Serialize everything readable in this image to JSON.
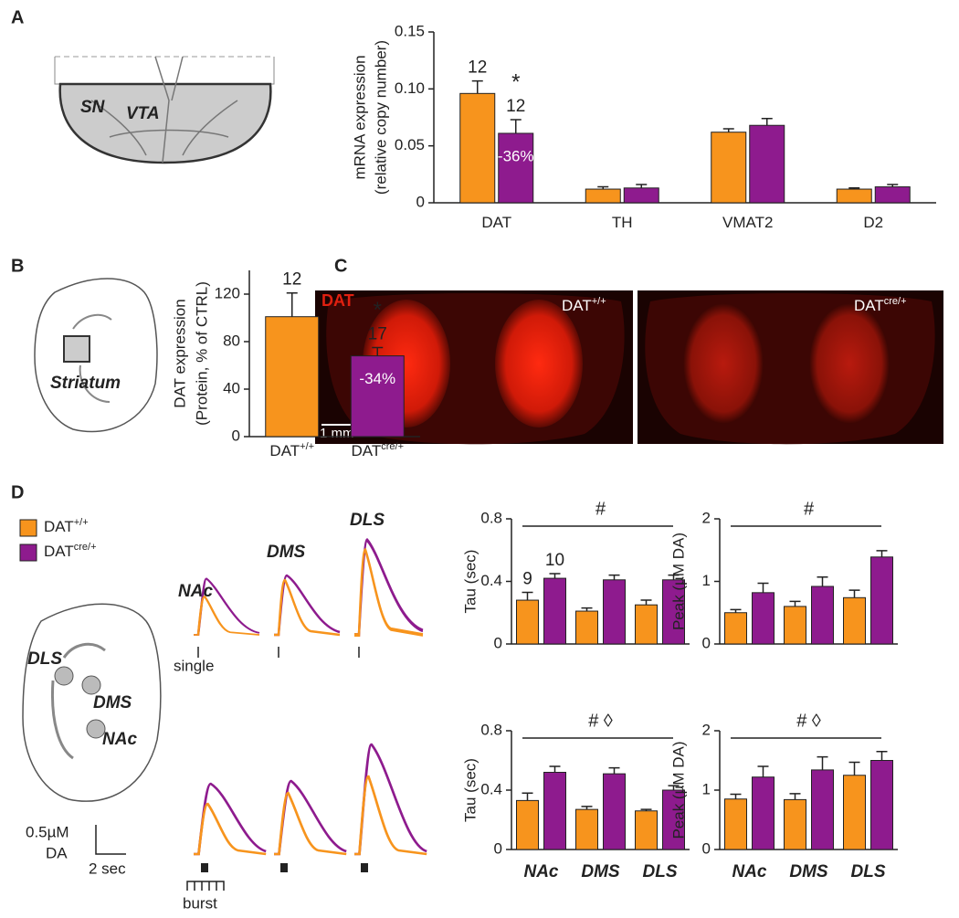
{
  "panel_labels": [
    "A",
    "B",
    "C",
    "D"
  ],
  "diagram_labels": {
    "A": [
      "SN",
      "VTA"
    ],
    "B": [
      "Striatum"
    ],
    "D": [
      "DLS",
      "DMS",
      "NAc"
    ]
  },
  "panel_c": {
    "stain": "DAT",
    "images": [
      {
        "base": "DAT",
        "sup": "+/+"
      },
      {
        "base": "DAT",
        "sup": "cre/+"
      }
    ],
    "scale": "1 mm"
  },
  "traces": {
    "titles": [
      "NAc",
      "DMS",
      "DLS"
    ],
    "single": "single",
    "burst": "burst",
    "scale_y": [
      "0.5µM",
      "DA"
    ],
    "scale_x": "2 sec"
  },
  "chart_data": [
    {
      "type": "bar",
      "ylabel": [
        "mRNA expression",
        "(relative copy number)"
      ],
      "categories": [
        "DAT",
        "TH",
        "VMAT2",
        "D2"
      ],
      "ylim": [
        0,
        0.15
      ],
      "yticks": [
        0,
        0.05,
        {
          "value": 0.1,
          "label": "0.10"
        },
        0.15
      ],
      "series": [
        {
          "color": "#f7941d",
          "values": [
            0.096,
            0.012,
            0.062,
            0.012
          ],
          "errors": [
            0.011,
            0.002,
            0.003,
            0.001
          ],
          "n": [
            12,
            null,
            null,
            null
          ]
        },
        {
          "color": "#8e1b8e",
          "values": [
            0.061,
            0.013,
            0.068,
            0.014
          ],
          "errors": [
            0.012,
            0.003,
            0.006,
            0.002
          ],
          "n": [
            12,
            null,
            null,
            null
          ],
          "marks": [
            "*",
            null,
            null,
            null
          ],
          "inner_labels": [
            "-36%",
            null,
            null,
            null
          ]
        }
      ]
    },
    {
      "type": "bar",
      "ylabel": [
        "DAT expression",
        "(Protein, % of CTRL)"
      ],
      "categories": [
        "DAT",
        "DAT"
      ],
      "category_sups": [
        "+/+",
        "cre/+"
      ],
      "ylim": [
        0,
        140
      ],
      "yticks": [
        0,
        40,
        80,
        120
      ],
      "series": [
        {
          "colors": [
            "#f7941d",
            "#8e1b8e"
          ],
          "values": [
            101,
            68
          ],
          "errors": [
            20,
            7
          ],
          "n": [
            12,
            17
          ],
          "marks": [
            null,
            "*"
          ],
          "inner_labels": [
            null,
            "-34%"
          ]
        }
      ]
    },
    {
      "type": "bar",
      "ylabel": [
        "Tau (sec)"
      ],
      "categories": [
        null,
        null,
        null
      ],
      "ylim": [
        0,
        0.8
      ],
      "yticks": [
        0,
        0.4,
        0.8
      ],
      "annotation": "#",
      "series": [
        {
          "name": "DAT",
          "name_sup": "+/+",
          "color": "#f7941d",
          "values": [
            0.28,
            0.21,
            0.25
          ],
          "errors": [
            0.05,
            0.02,
            0.03
          ],
          "n": [
            9,
            null,
            null
          ]
        },
        {
          "name": "DAT",
          "name_sup": "cre/+",
          "color": "#8e1b8e",
          "values": [
            0.42,
            0.41,
            0.41
          ],
          "errors": [
            0.03,
            0.03,
            0.03
          ],
          "n": [
            10,
            null,
            null
          ]
        }
      ]
    },
    {
      "type": "bar",
      "ylabel": [
        "Peak (µM DA)"
      ],
      "categories": [
        null,
        null,
        null
      ],
      "ylim": [
        0,
        2
      ],
      "yticks": [
        0,
        1,
        2
      ],
      "annotation": "#",
      "series": [
        {
          "color": "#f7941d",
          "values": [
            0.5,
            0.6,
            0.74
          ],
          "errors": [
            0.05,
            0.08,
            0.12
          ]
        },
        {
          "color": "#8e1b8e",
          "values": [
            0.82,
            0.92,
            1.39
          ],
          "errors": [
            0.15,
            0.15,
            0.1
          ]
        }
      ]
    },
    {
      "type": "bar",
      "ylabel": [
        "Tau (sec)"
      ],
      "categories": [
        "NAc",
        "DMS",
        "DLS"
      ],
      "ylim": [
        0,
        0.8
      ],
      "yticks": [
        0,
        0.4,
        0.8
      ],
      "annotation": "# ◊",
      "series": [
        {
          "color": "#f7941d",
          "values": [
            0.33,
            0.27,
            0.26
          ],
          "errors": [
            0.05,
            0.02,
            0.01
          ]
        },
        {
          "color": "#8e1b8e",
          "values": [
            0.52,
            0.51,
            0.4
          ],
          "errors": [
            0.04,
            0.04,
            0.03
          ]
        }
      ]
    },
    {
      "type": "bar",
      "ylabel": [
        "Peak (µM DA)"
      ],
      "categories": [
        "NAc",
        "DMS",
        "DLS"
      ],
      "ylim": [
        0,
        2
      ],
      "yticks": [
        0,
        1,
        2
      ],
      "annotation": "# ◊",
      "series": [
        {
          "color": "#f7941d",
          "values": [
            0.85,
            0.84,
            1.25
          ],
          "errors": [
            0.08,
            0.1,
            0.22
          ]
        },
        {
          "color": "#8e1b8e",
          "values": [
            1.22,
            1.34,
            1.5
          ],
          "errors": [
            0.18,
            0.22,
            0.15
          ]
        }
      ]
    }
  ]
}
